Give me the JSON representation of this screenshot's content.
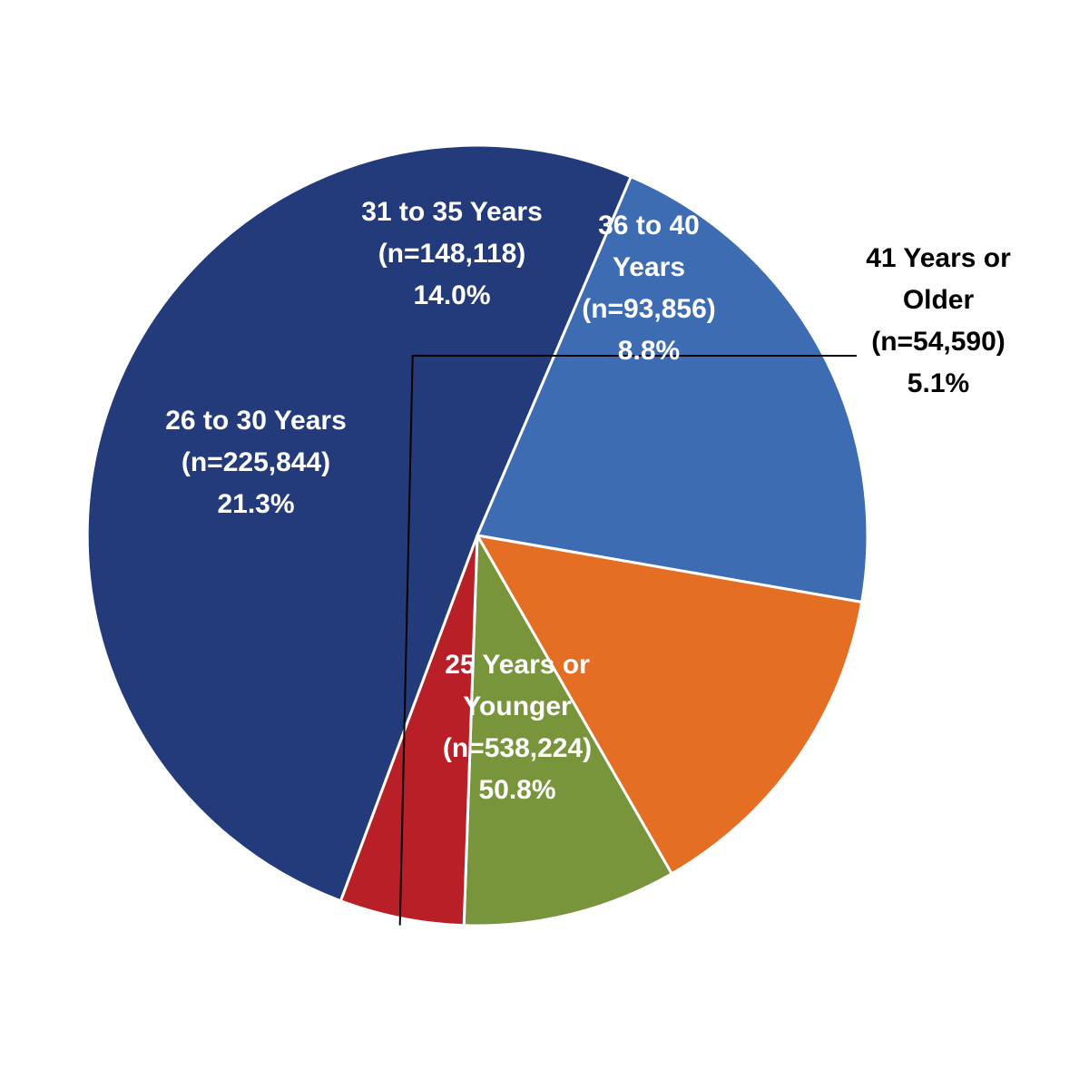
{
  "chart_data": {
    "type": "pie",
    "title": "",
    "slices": [
      {
        "label_lines": [
          "25 Years or",
          "Younger",
          "(n=538,224)",
          "50.8%"
        ],
        "value": 538224,
        "percent": 50.8,
        "color": "#233B7A",
        "label_color": "#FFFFFF"
      },
      {
        "label_lines": [
          "26 to 30 Years",
          "(n=225,844)",
          "21.3%"
        ],
        "value": 225844,
        "percent": 21.3,
        "color": "#3D6CB3",
        "label_color": "#FFFFFF"
      },
      {
        "label_lines": [
          "31 to 35 Years",
          "(n=148,118)",
          "14.0%"
        ],
        "value": 148118,
        "percent": 14.0,
        "color": "#E46F24",
        "label_color": "#FFFFFF"
      },
      {
        "label_lines": [
          "36 to 40",
          "Years",
          "(n=93,856)",
          "8.8%"
        ],
        "value": 93856,
        "percent": 8.8,
        "color": "#79953C",
        "label_color": "#FFFFFF"
      },
      {
        "label_lines": [
          "41 Years or",
          "Older",
          "(n=54,590)",
          "5.1%"
        ],
        "value": 54590,
        "percent": 5.1,
        "color": "#B81F27",
        "label_color": "#000000"
      }
    ],
    "legend": "none"
  }
}
